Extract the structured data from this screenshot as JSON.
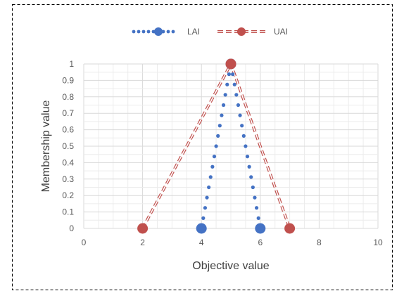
{
  "chart_data": {
    "type": "scatter",
    "title": "",
    "xlabel": "Objective value",
    "ylabel": "Membership value",
    "xlim": [
      0,
      10
    ],
    "ylim": [
      0,
      1
    ],
    "x_ticks": [
      "0",
      "2",
      "4",
      "6",
      "8",
      "10"
    ],
    "y_ticks": [
      "0",
      "0.1",
      "0.2",
      "0.3",
      "0.4",
      "0.5",
      "0.6",
      "0.7",
      "0.8",
      "0.9",
      "1"
    ],
    "x_minor_step": 0.5,
    "y_minor_step": 0.05,
    "grid": true,
    "legend_position": "top",
    "series": [
      {
        "name": "LAI",
        "color": "#4472c4",
        "line_style": "dotted",
        "marker": "circle",
        "points": [
          [
            4,
            0
          ],
          [
            5,
            1
          ],
          [
            6,
            0
          ]
        ]
      },
      {
        "name": "UAI",
        "color": "#c0504d",
        "line_style": "dashed",
        "marker": "circle",
        "points": [
          [
            2,
            0
          ],
          [
            5,
            1
          ],
          [
            7,
            0
          ]
        ]
      }
    ]
  }
}
